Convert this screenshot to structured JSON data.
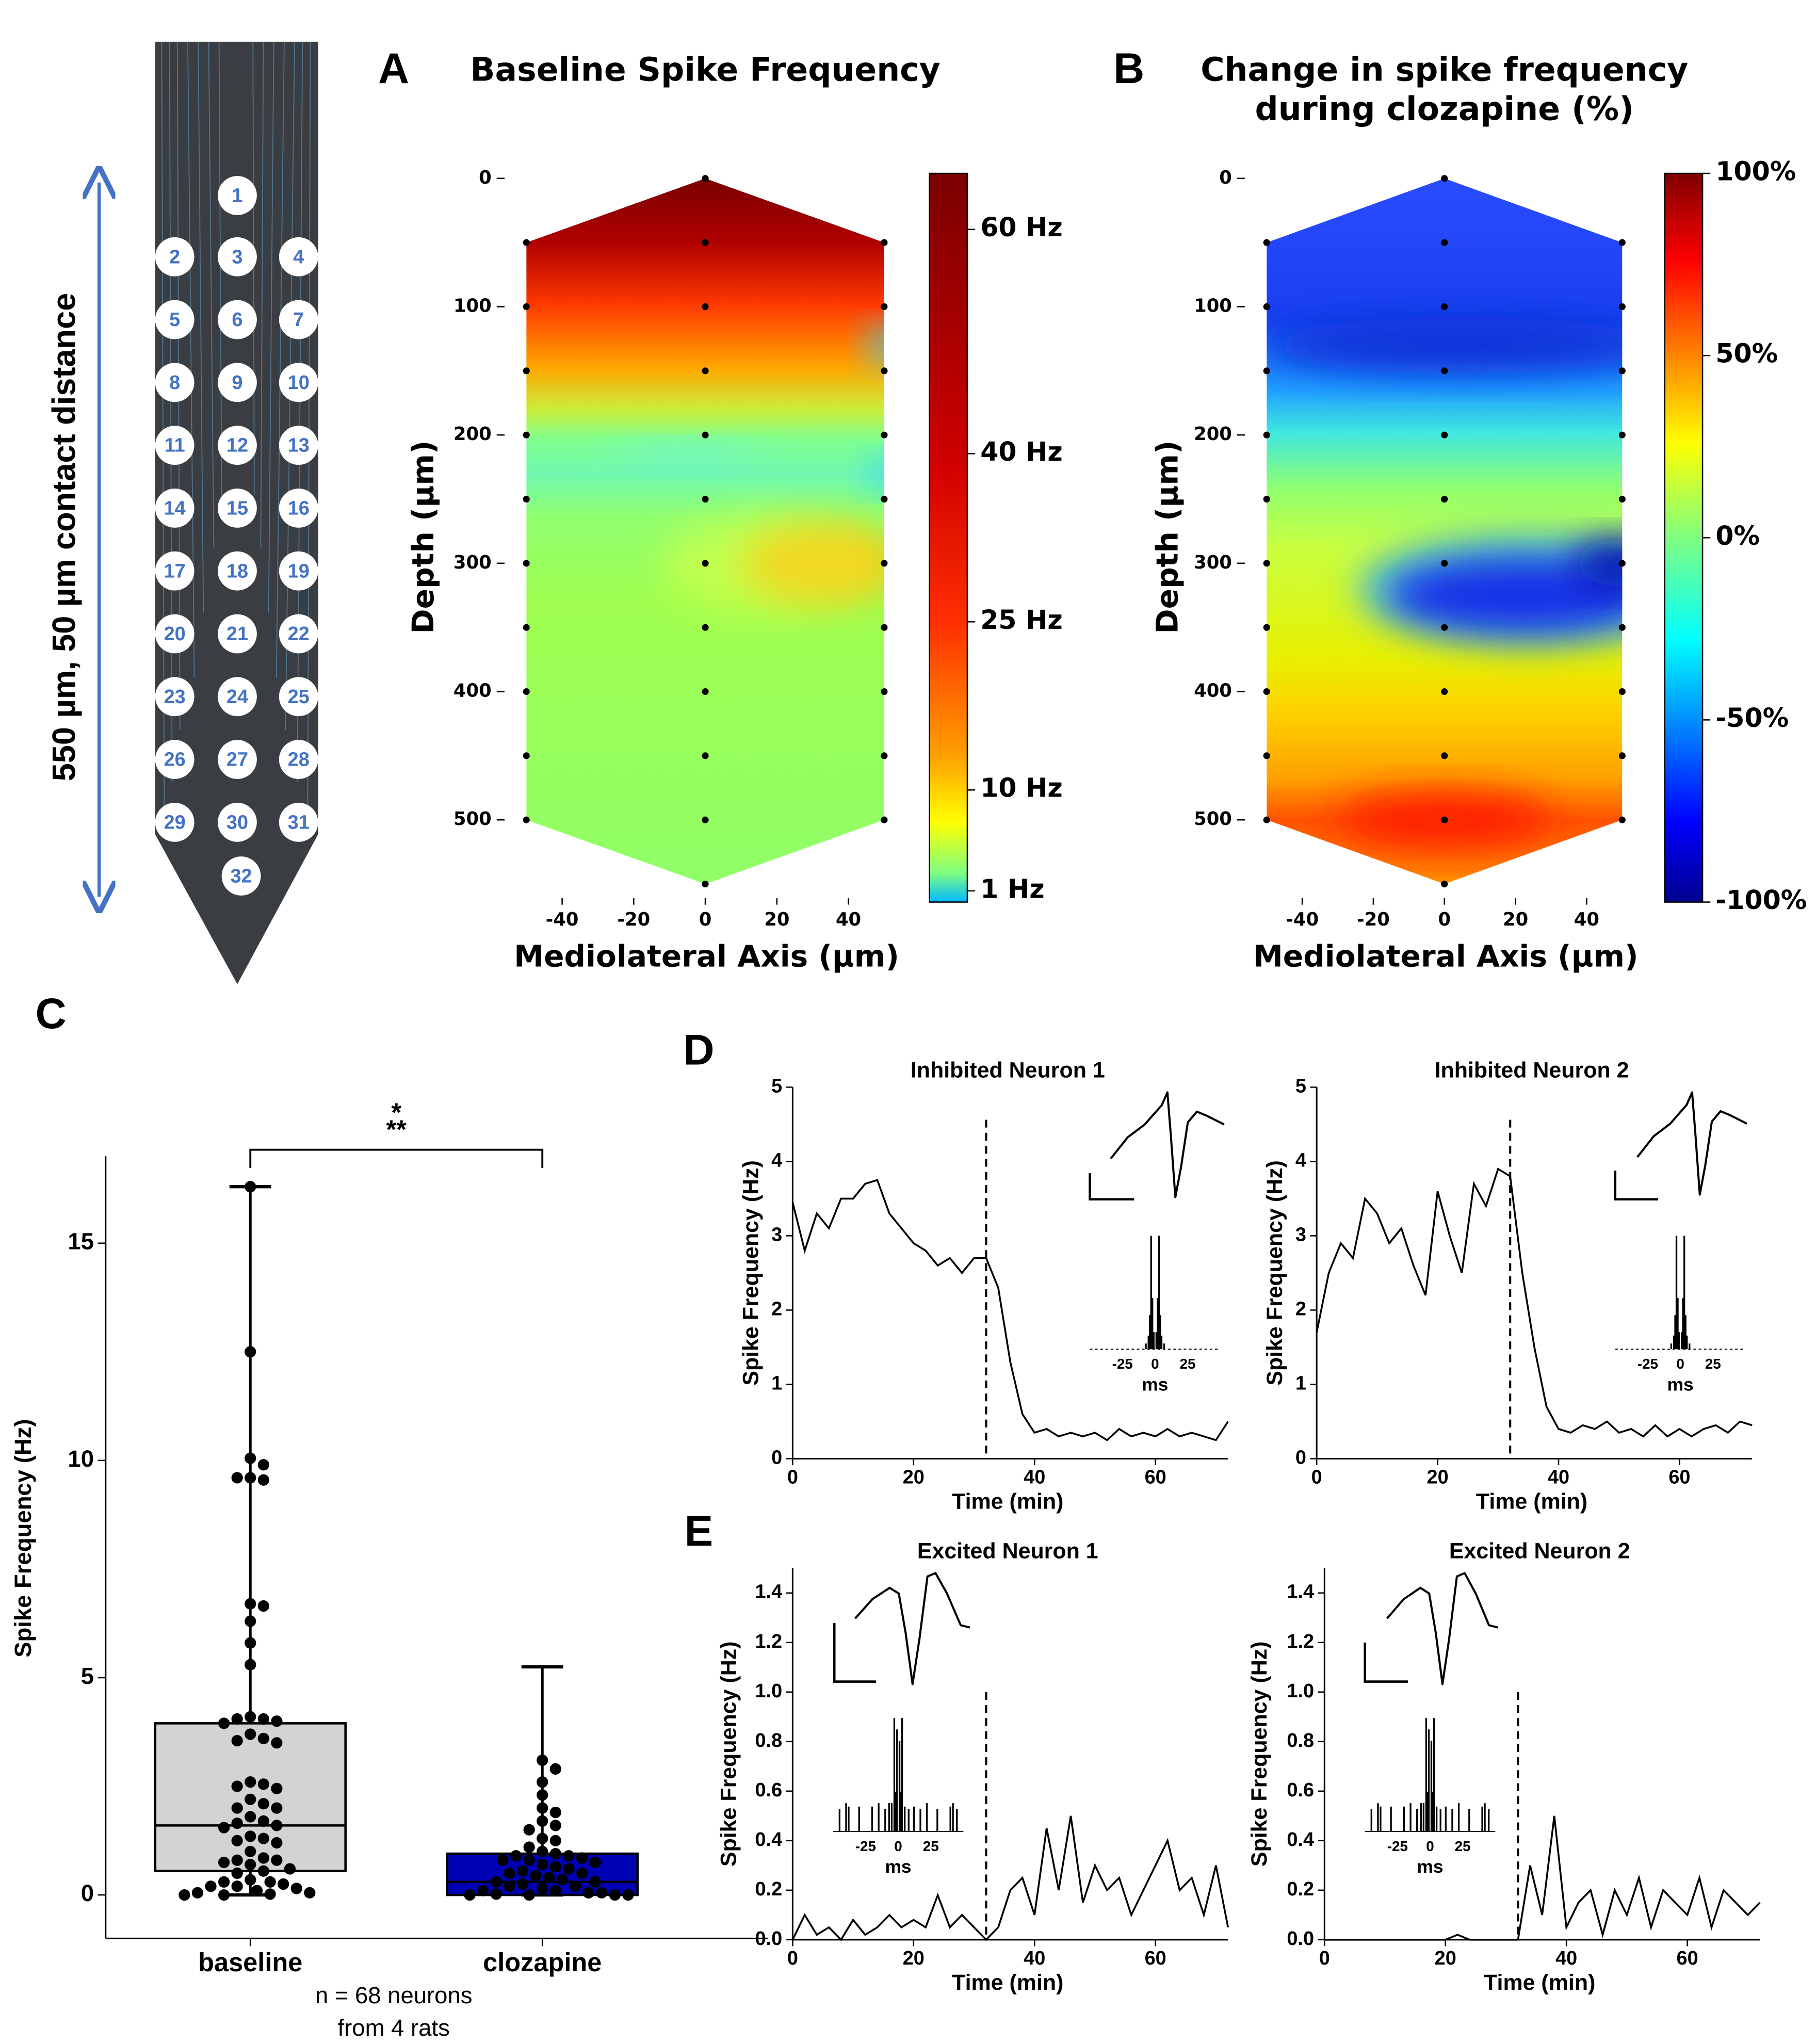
{
  "probe": {
    "label": "550 µm, 50 µm contact distance",
    "contacts": [
      "1",
      "2",
      "3",
      "4",
      "5",
      "6",
      "7",
      "8",
      "9",
      "10",
      "11",
      "12",
      "13",
      "14",
      "15",
      "16",
      "17",
      "18",
      "19",
      "20",
      "21",
      "22",
      "23",
      "24",
      "25",
      "26",
      "27",
      "28",
      "29",
      "30",
      "31",
      "32"
    ]
  },
  "chart_data": [
    {
      "type": "heatmap",
      "panel": "A",
      "title": "Baseline Spike Frequency",
      "xlabel": "Mediolateral Axis (µm)",
      "ylabel": "Depth (µm)",
      "xlim": [
        -55,
        55
      ],
      "xticks": [
        -40,
        -20,
        0,
        20,
        40
      ],
      "ylim": [
        560,
        -10
      ],
      "yticks": [
        0,
        100,
        200,
        300,
        400,
        500
      ],
      "electrodes": {
        "x": [
          -50,
          -50,
          -50,
          -50,
          -50,
          -50,
          -50,
          -50,
          -50,
          -50,
          0,
          0,
          0,
          0,
          0,
          0,
          0,
          0,
          0,
          0,
          0,
          0,
          50,
          50,
          50,
          50,
          50,
          50,
          50,
          50,
          50,
          50
        ],
        "y": [
          50,
          100,
          150,
          200,
          250,
          300,
          350,
          400,
          450,
          500,
          0,
          50,
          100,
          150,
          200,
          250,
          300,
          350,
          400,
          450,
          500,
          550,
          50,
          100,
          150,
          200,
          250,
          300,
          350,
          400,
          450,
          500
        ]
      },
      "colorbar": {
        "clim": [
          0,
          65
        ],
        "ticks": [
          {
            "value": 1,
            "label": "1 Hz"
          },
          {
            "value": 10,
            "label": "10 Hz"
          },
          {
            "value": 25,
            "label": "25 Hz"
          },
          {
            "value": 40,
            "label": "40 Hz"
          },
          {
            "value": 60,
            "label": "60 Hz"
          }
        ]
      }
    },
    {
      "type": "heatmap",
      "panel": "B",
      "title": [
        "Change in spike frequency",
        "during clozapine (%)"
      ],
      "xlabel": "Mediolateral Axis (µm)",
      "ylabel": "Depth (µm)",
      "xlim": [
        -55,
        55
      ],
      "xticks": [
        -40,
        -20,
        0,
        20,
        40
      ],
      "ylim": [
        560,
        -10
      ],
      "yticks": [
        0,
        100,
        200,
        300,
        400,
        500
      ],
      "electrodes": {
        "x": [
          -50,
          -50,
          -50,
          -50,
          -50,
          -50,
          -50,
          -50,
          -50,
          -50,
          0,
          0,
          0,
          0,
          0,
          0,
          0,
          0,
          0,
          0,
          0,
          0,
          50,
          50,
          50,
          50,
          50,
          50,
          50,
          50,
          50,
          50
        ],
        "y": [
          50,
          100,
          150,
          200,
          250,
          300,
          350,
          400,
          450,
          500,
          0,
          50,
          100,
          150,
          200,
          250,
          300,
          350,
          400,
          450,
          500,
          550,
          50,
          100,
          150,
          200,
          250,
          300,
          350,
          400,
          450,
          500
        ]
      },
      "colorbar": {
        "clim": [
          -100,
          100
        ],
        "ticks": [
          {
            "value": 100,
            "label": "100%"
          },
          {
            "value": 50,
            "label": "50%"
          },
          {
            "value": 0,
            "label": "0%"
          },
          {
            "value": -50,
            "label": "-50%"
          },
          {
            "value": -100,
            "label": "-100%"
          }
        ]
      }
    },
    {
      "type": "box",
      "panel": "C",
      "ylabel": "Spike Frequency (Hz)",
      "categories": [
        "baseline",
        "clozapine"
      ],
      "ylim": [
        -1,
        17
      ],
      "yticks": [
        0,
        5,
        10,
        15
      ],
      "annotation": [
        "*",
        "**"
      ],
      "note": [
        "n = 68 neurons",
        "from 4 rats"
      ],
      "boxes": [
        {
          "color": "#d3d3d3",
          "whislo": 0,
          "q1": 0.55,
          "median": 1.6,
          "q3": 3.95,
          "whishi": 16.3,
          "points": [
            16.3,
            12.5,
            10.05,
            9.9,
            9.6,
            9.55,
            9.6,
            6.7,
            6.65,
            6.3,
            5.8,
            5.3,
            4.1,
            4.05,
            4.05,
            4.0,
            3.95,
            3.7,
            3.6,
            3.55,
            3.5,
            2.6,
            2.55,
            2.5,
            2.45,
            2.2,
            2.1,
            2.0,
            2.0,
            1.8,
            1.7,
            1.65,
            1.6,
            1.55,
            1.35,
            1.3,
            1.25,
            1.2,
            1.0,
            0.85,
            0.8,
            0.8,
            0.75,
            0.7,
            0.6,
            0.55,
            0.5,
            0.35,
            0.3,
            0.3,
            0.25,
            0.2,
            0.2,
            0.15,
            0.1,
            0.05,
            0.05,
            0.02,
            0.0,
            0.0
          ]
        },
        {
          "color": "#0000b4",
          "whislo": 0,
          "q1": 0.0,
          "median": 0.3,
          "q3": 0.95,
          "whishi": 5.25,
          "points": [
            3.1,
            2.9,
            2.6,
            2.3,
            2.0,
            1.9,
            1.7,
            1.6,
            1.5,
            1.3,
            1.25,
            1.1,
            1.0,
            0.95,
            0.9,
            0.9,
            0.85,
            0.8,
            0.8,
            0.75,
            0.7,
            0.65,
            0.6,
            0.55,
            0.5,
            0.5,
            0.45,
            0.4,
            0.35,
            0.3,
            0.3,
            0.25,
            0.2,
            0.2,
            0.15,
            0.1,
            0.1,
            0.05,
            0.05,
            0.02,
            0.0,
            0.0,
            0.0,
            0.0
          ]
        }
      ]
    },
    {
      "type": "line",
      "panel": "D",
      "title": "Inhibited Neuron 1",
      "xlabel": "Time (min)",
      "ylabel": "Spike Frequency (Hz)",
      "color": "#000000",
      "event_x": 32,
      "xlim": [
        0,
        72
      ],
      "xticks": [
        0,
        20,
        40,
        60
      ],
      "ylim": [
        0,
        5
      ],
      "yticks": [
        0,
        1,
        2,
        3,
        4,
        5
      ],
      "x": [
        0,
        2,
        4,
        6,
        8,
        10,
        12,
        14,
        16,
        18,
        20,
        22,
        24,
        26,
        28,
        30,
        32,
        34,
        36,
        38,
        40,
        42,
        44,
        46,
        48,
        50,
        52,
        54,
        56,
        58,
        60,
        62,
        64,
        66,
        68,
        70,
        72
      ],
      "values": [
        3.45,
        2.8,
        3.3,
        3.1,
        3.5,
        3.5,
        3.7,
        3.75,
        3.3,
        3.1,
        2.9,
        2.8,
        2.6,
        2.7,
        2.5,
        2.7,
        2.7,
        2.3,
        1.3,
        0.6,
        0.35,
        0.4,
        0.3,
        0.35,
        0.3,
        0.35,
        0.25,
        0.4,
        0.3,
        0.35,
        0.3,
        0.4,
        0.3,
        0.35,
        0.3,
        0.25,
        0.5
      ],
      "inset": {
        "xlim": [
          -50,
          50
        ],
        "xticks": [
          -25,
          0,
          25
        ],
        "xlabel": "ms"
      }
    },
    {
      "type": "line",
      "title": "Inhibited Neuron 2",
      "xlabel": "Time (min)",
      "ylabel": "Spike Frequency (Hz)",
      "color": "#000000",
      "event_x": 32,
      "xlim": [
        0,
        72
      ],
      "xticks": [
        0,
        20,
        40,
        60
      ],
      "ylim": [
        0,
        5
      ],
      "yticks": [
        0,
        1,
        2,
        3,
        4,
        5
      ],
      "x": [
        0,
        2,
        4,
        6,
        8,
        10,
        12,
        14,
        16,
        18,
        20,
        22,
        24,
        26,
        28,
        30,
        32,
        34,
        36,
        38,
        40,
        42,
        44,
        46,
        48,
        50,
        52,
        54,
        56,
        58,
        60,
        62,
        64,
        66,
        68,
        70,
        72
      ],
      "values": [
        1.7,
        2.5,
        2.9,
        2.7,
        3.5,
        3.3,
        2.9,
        3.1,
        2.6,
        2.2,
        3.6,
        3.0,
        2.5,
        3.7,
        3.4,
        3.9,
        3.8,
        2.5,
        1.5,
        0.7,
        0.4,
        0.35,
        0.45,
        0.4,
        0.5,
        0.35,
        0.4,
        0.3,
        0.45,
        0.3,
        0.4,
        0.3,
        0.4,
        0.45,
        0.35,
        0.5,
        0.45
      ],
      "inset": {
        "xlim": [
          -50,
          50
        ],
        "xticks": [
          -25,
          0,
          25
        ],
        "xlabel": "ms"
      }
    },
    {
      "type": "line",
      "panel": "E",
      "title": "Excited Neuron 1",
      "xlabel": "Time (min)",
      "ylabel": "Spike Frequency (Hz)",
      "color": "#000000",
      "event_x": 32,
      "xlim": [
        0,
        72
      ],
      "xticks": [
        0,
        20,
        40,
        60
      ],
      "ylim": [
        0,
        1.5
      ],
      "yticks": [
        {
          "value": 0,
          "label": "0.0"
        },
        0.2,
        0.4,
        0.6,
        0.8,
        {
          "value": 1,
          "label": "1.0"
        },
        1.2,
        1.4
      ],
      "x": [
        0,
        2,
        4,
        6,
        8,
        10,
        12,
        14,
        16,
        18,
        20,
        22,
        24,
        26,
        28,
        30,
        32,
        34,
        36,
        38,
        40,
        42,
        44,
        46,
        48,
        50,
        52,
        54,
        56,
        58,
        60,
        62,
        64,
        66,
        68,
        70,
        72
      ],
      "values": [
        0.0,
        0.1,
        0.02,
        0.05,
        0.0,
        0.08,
        0.02,
        0.05,
        0.1,
        0.05,
        0.08,
        0.05,
        0.18,
        0.05,
        0.1,
        0.05,
        0.0,
        0.05,
        0.2,
        0.25,
        0.1,
        0.45,
        0.2,
        0.5,
        0.15,
        0.3,
        0.2,
        0.25,
        0.1,
        0.2,
        0.3,
        0.4,
        0.2,
        0.25,
        0.1,
        0.3,
        0.05
      ],
      "inset": {
        "xlim": [
          -50,
          50
        ],
        "xticks": [
          -25,
          0,
          25
        ],
        "xlabel": "ms"
      }
    },
    {
      "type": "line",
      "title": "Excited Neuron 2",
      "xlabel": "Time (min)",
      "ylabel": "Spike Frequency (Hz)",
      "color": "#000000",
      "event_x": 32,
      "xlim": [
        0,
        72
      ],
      "xticks": [
        0,
        20,
        40,
        60
      ],
      "ylim": [
        0,
        1.5
      ],
      "yticks": [
        {
          "value": 0,
          "label": "0.0"
        },
        0.2,
        0.4,
        0.6,
        0.8,
        {
          "value": 1,
          "label": "1.0"
        },
        1.2,
        1.4
      ],
      "x": [
        0,
        2,
        4,
        6,
        8,
        10,
        12,
        14,
        16,
        18,
        20,
        22,
        24,
        26,
        28,
        30,
        32,
        34,
        36,
        38,
        40,
        42,
        44,
        46,
        48,
        50,
        52,
        54,
        56,
        58,
        60,
        62,
        64,
        66,
        68,
        70,
        72
      ],
      "values": [
        0.0,
        0.0,
        0.0,
        0.0,
        0.0,
        0.0,
        0.0,
        0.0,
        0.0,
        0.0,
        0.0,
        0.02,
        0.0,
        0.0,
        0.0,
        0.0,
        0.0,
        0.3,
        0.1,
        0.5,
        0.05,
        0.15,
        0.2,
        0.02,
        0.2,
        0.1,
        0.25,
        0.05,
        0.2,
        0.15,
        0.1,
        0.25,
        0.05,
        0.2,
        0.15,
        0.1,
        0.15
      ],
      "inset": {
        "xlim": [
          -50,
          50
        ],
        "xticks": [
          -25,
          0,
          25
        ],
        "xlabel": "ms"
      }
    }
  ]
}
